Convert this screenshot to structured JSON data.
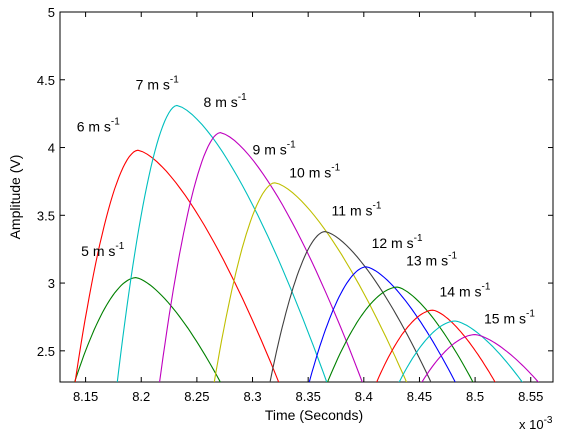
{
  "chart_data": {
    "type": "line",
    "xlabel": "Time (Seconds)",
    "ylabel": "Amplitude (V)",
    "x_multiplier_base": "x 10",
    "x_multiplier_exp": "-3",
    "xlim": [
      8.127,
      8.57
    ],
    "ylim": [
      2.27,
      5.0
    ],
    "x_ticks": [
      "8.15",
      "8.2",
      "8.25",
      "8.3",
      "8.35",
      "8.4",
      "8.45",
      "8.5",
      "8.55"
    ],
    "x_tick_values": [
      8.15,
      8.2,
      8.25,
      8.3,
      8.35,
      8.4,
      8.45,
      8.5,
      8.55
    ],
    "y_ticks": [
      "2.5",
      "3",
      "3.5",
      "4",
      "4.5",
      "5"
    ],
    "y_tick_values": [
      2.5,
      3,
      3.5,
      4,
      4.5,
      5
    ],
    "grid": false,
    "legend": "none",
    "series": [
      {
        "name": "5 m s",
        "name_sup": "-1",
        "color": "#008000",
        "start": 8.139,
        "peak_x": 8.195,
        "peak_y": 3.04,
        "end": 8.273,
        "label_x": 8.146,
        "label_y": 3.2
      },
      {
        "name": "6 m s",
        "name_sup": "-1",
        "color": "#ff0000",
        "start": 8.14,
        "peak_x": 8.197,
        "peak_y": 3.98,
        "end": 8.325,
        "label_x": 8.142,
        "label_y": 4.12
      },
      {
        "name": "7 m s",
        "name_sup": "-1",
        "color": "#00bfbf",
        "start": 8.178,
        "peak_x": 8.232,
        "peak_y": 4.31,
        "end": 8.368,
        "label_x": 8.195,
        "label_y": 4.43
      },
      {
        "name": "8 m s",
        "name_sup": "-1",
        "color": "#bf00bf",
        "start": 8.216,
        "peak_x": 8.271,
        "peak_y": 4.11,
        "end": 8.4,
        "label_x": 8.256,
        "label_y": 4.3
      },
      {
        "name": "9 m s",
        "name_sup": "-1",
        "color": "#bfbf00",
        "start": 8.265,
        "peak_x": 8.32,
        "peak_y": 3.74,
        "end": 8.44,
        "label_x": 8.3,
        "label_y": 3.95
      },
      {
        "name": "10 m s",
        "name_sup": "-1",
        "color": "#404040",
        "start": 8.315,
        "peak_x": 8.365,
        "peak_y": 3.38,
        "end": 8.462,
        "label_x": 8.333,
        "label_y": 3.78
      },
      {
        "name": "11 m s",
        "name_sup": "-1",
        "color": "#0000ff",
        "start": 8.35,
        "peak_x": 8.402,
        "peak_y": 3.12,
        "end": 8.484,
        "label_x": 8.371,
        "label_y": 3.5
      },
      {
        "name": "12 m s",
        "name_sup": "-1",
        "color": "#008000",
        "start": 8.366,
        "peak_x": 8.43,
        "peak_y": 2.97,
        "end": 8.5,
        "label_x": 8.407,
        "label_y": 3.26
      },
      {
        "name": "13 m s",
        "name_sup": "-1",
        "color": "#ff0000",
        "start": 8.41,
        "peak_x": 8.462,
        "peak_y": 2.8,
        "end": 8.52,
        "label_x": 8.438,
        "label_y": 3.13
      },
      {
        "name": "14 m s",
        "name_sup": "-1",
        "color": "#00bfbf",
        "start": 8.43,
        "peak_x": 8.482,
        "peak_y": 2.72,
        "end": 8.545,
        "label_x": 8.468,
        "label_y": 2.9
      },
      {
        "name": "15 m s",
        "name_sup": "-1",
        "color": "#bf00bf",
        "start": 8.45,
        "peak_x": 8.5,
        "peak_y": 2.62,
        "end": 8.56,
        "label_x": 8.508,
        "label_y": 2.7
      }
    ]
  }
}
